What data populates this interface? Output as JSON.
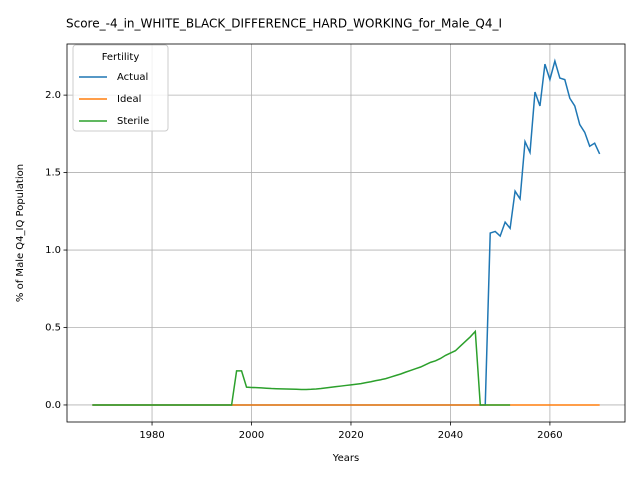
{
  "chart_data": {
    "type": "line",
    "title": "Score_-4_in_WHITE_BLACK_DIFFERENCE_HARD_WORKING_for_Male_Q4_I",
    "x_label": "Years",
    "y_label": "% of Male Q4_IQ Population",
    "legend_title": "Fertility",
    "legend": "upper left",
    "grid": true,
    "x": [
      1968,
      1969,
      1970,
      1971,
      1972,
      1973,
      1974,
      1975,
      1976,
      1977,
      1978,
      1979,
      1980,
      1981,
      1982,
      1983,
      1984,
      1985,
      1986,
      1987,
      1988,
      1989,
      1990,
      1991,
      1992,
      1993,
      1994,
      1995,
      1996,
      1997,
      1998,
      1999,
      2000,
      2001,
      2002,
      2003,
      2004,
      2005,
      2006,
      2007,
      2008,
      2009,
      2010,
      2011,
      2012,
      2013,
      2014,
      2015,
      2016,
      2017,
      2018,
      2019,
      2020,
      2021,
      2022,
      2023,
      2024,
      2025,
      2026,
      2027,
      2028,
      2029,
      2030,
      2031,
      2032,
      2033,
      2034,
      2035,
      2036,
      2037,
      2038,
      2039,
      2040,
      2041,
      2042,
      2043,
      2044,
      2045,
      2046,
      2047,
      2048,
      2049,
      2050,
      2051,
      2052,
      2053,
      2054,
      2055,
      2056,
      2057,
      2058,
      2059,
      2060,
      2061,
      2062,
      2063,
      2064,
      2065,
      2066,
      2067,
      2068,
      2069,
      2070
    ],
    "series": [
      {
        "name": "Actual",
        "color": "#1f77b4",
        "values": [
          0,
          0,
          0,
          0,
          0,
          0,
          0,
          0,
          0,
          0,
          0,
          0,
          0,
          0,
          0,
          0,
          0,
          0,
          0,
          0,
          0,
          0,
          0,
          0,
          0,
          0,
          0,
          0,
          0,
          0,
          0,
          0,
          0,
          0,
          0,
          0,
          0,
          0,
          0,
          0,
          0,
          0,
          0,
          0,
          0,
          0,
          0,
          0,
          0,
          0,
          0,
          0,
          0,
          0,
          0,
          0,
          0,
          0,
          0,
          0,
          0,
          0,
          0,
          0,
          0,
          0,
          0,
          0,
          0,
          0,
          0,
          0,
          0,
          0,
          0,
          0,
          0,
          0,
          0,
          0,
          1.11,
          1.12,
          1.09,
          1.18,
          1.14,
          1.38,
          1.33,
          1.7,
          1.63,
          2.02,
          1.93,
          2.2,
          2.1,
          2.22,
          2.11,
          2.1,
          1.98,
          1.93,
          1.81,
          1.76,
          1.67,
          1.69,
          1.62
        ]
      },
      {
        "name": "Ideal",
        "color": "#ff7f0e",
        "values": [
          0,
          0,
          0,
          0,
          0,
          0,
          0,
          0,
          0,
          0,
          0,
          0,
          0,
          0,
          0,
          0,
          0,
          0,
          0,
          0,
          0,
          0,
          0,
          0,
          0,
          0,
          0,
          0,
          0,
          0,
          0,
          0,
          0,
          0,
          0,
          0,
          0,
          0,
          0,
          0,
          0,
          0,
          0,
          0,
          0,
          0,
          0,
          0,
          0,
          0,
          0,
          0,
          0,
          0,
          0,
          0,
          0,
          0,
          0,
          0,
          0,
          0,
          0,
          0,
          0,
          0,
          0,
          0,
          0,
          0,
          0,
          0,
          0,
          0,
          0,
          0,
          0,
          0,
          0,
          0,
          0,
          0,
          0,
          0,
          0,
          0,
          0,
          0,
          0,
          0,
          0,
          0,
          0,
          0,
          0,
          0,
          0,
          0,
          0,
          0,
          0,
          0,
          0
        ]
      },
      {
        "name": "Sterile",
        "color": "#2ca02c",
        "values": [
          0,
          0,
          0,
          0,
          0,
          0,
          0,
          0,
          0,
          0,
          0,
          0,
          0,
          0,
          0,
          0,
          0,
          0,
          0,
          0,
          0,
          0,
          0,
          0,
          0,
          0,
          0,
          0,
          0,
          0.22,
          0.22,
          0.115,
          0.113,
          0.112,
          0.11,
          0.108,
          0.106,
          0.105,
          0.104,
          0.103,
          0.102,
          0.101,
          0.1,
          0.1,
          0.101,
          0.103,
          0.106,
          0.11,
          0.114,
          0.118,
          0.122,
          0.126,
          0.13,
          0.134,
          0.138,
          0.144,
          0.15,
          0.157,
          0.163,
          0.17,
          0.18,
          0.19,
          0.2,
          0.212,
          0.223,
          0.234,
          0.245,
          0.26,
          0.275,
          0.285,
          0.3,
          0.32,
          0.335,
          0.35,
          0.38,
          0.41,
          0.44,
          0.475,
          0,
          0,
          0,
          0,
          0,
          0,
          0,
          null,
          null,
          null,
          null,
          null,
          null,
          null,
          null,
          null,
          null,
          null,
          null,
          null,
          null,
          null,
          null,
          null,
          null
        ]
      }
    ],
    "xlim": [
      1962.9,
      2075.1
    ],
    "ylim": [
      -0.11,
      2.33
    ],
    "xticks": [
      1980,
      2000,
      2020,
      2040,
      2060
    ],
    "yticks": [
      {
        "value": 0,
        "label": "0.0"
      },
      0.5,
      {
        "value": 1,
        "label": "1.0"
      },
      1.5,
      {
        "value": 2,
        "label": "2.0"
      }
    ]
  }
}
